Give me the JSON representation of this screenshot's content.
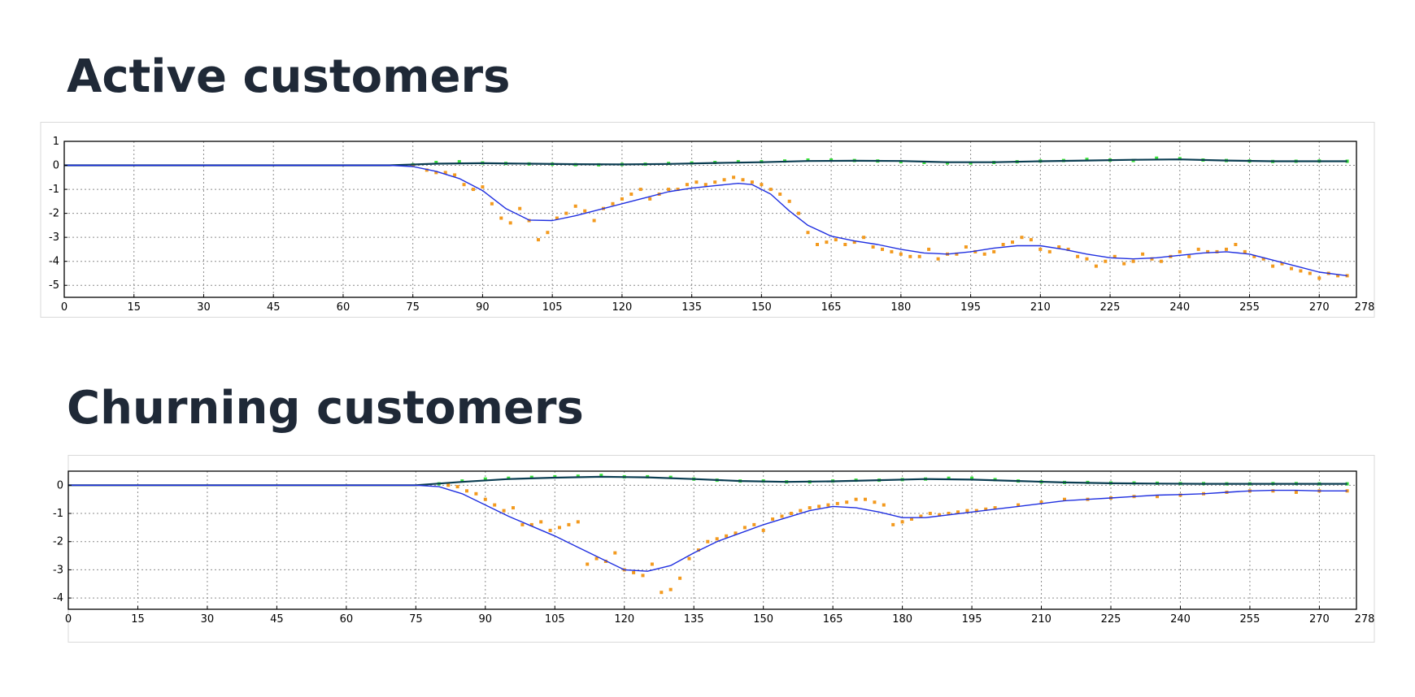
{
  "titles": {
    "active": "Active customers",
    "churn": "Churning customers"
  },
  "colors": {
    "smooth_line": "#1f2fe0",
    "orange_points": "#f39a1e",
    "green_points": "#39e03a",
    "grid": "#8c8c8c",
    "frame": "#000000",
    "title": "#1f2937"
  },
  "chart_data": [
    {
      "type": "scatter",
      "title": "Active customers",
      "xlim": [
        0,
        278
      ],
      "ylim": [
        -5.5,
        1
      ],
      "xticks": [
        0,
        15,
        30,
        45,
        60,
        75,
        90,
        105,
        120,
        135,
        150,
        165,
        180,
        195,
        210,
        225,
        240,
        255,
        270,
        278
      ],
      "yticks": [
        1,
        0,
        -1,
        -2,
        -3,
        -4,
        -5
      ],
      "grid": true,
      "series": [
        {
          "kind": "scatter",
          "color": "orange",
          "x": [
            75,
            78,
            80,
            82,
            84,
            86,
            88,
            90,
            92,
            94,
            96,
            98,
            100,
            102,
            104,
            106,
            108,
            110,
            112,
            114,
            116,
            118,
            120,
            122,
            124,
            126,
            128,
            130,
            132,
            134,
            136,
            138,
            140,
            142,
            144,
            146,
            148,
            150,
            152,
            154,
            156,
            158,
            160,
            162,
            164,
            166,
            168,
            170,
            172,
            174,
            176,
            178,
            180,
            182,
            184,
            186,
            188,
            190,
            192,
            194,
            196,
            198,
            200,
            202,
            204,
            206,
            208,
            210,
            212,
            214,
            216,
            218,
            220,
            222,
            224,
            226,
            228,
            230,
            232,
            234,
            236,
            238,
            240,
            242,
            244,
            246,
            248,
            250,
            252,
            254,
            256,
            258,
            260,
            262,
            264,
            266,
            268,
            270,
            272,
            274,
            276
          ],
          "y": [
            0,
            -0.2,
            -0.3,
            -0.3,
            -0.4,
            -0.8,
            -1.0,
            -0.9,
            -1.6,
            -2.2,
            -2.4,
            -1.8,
            -2.3,
            -3.1,
            -2.8,
            -2.2,
            -2.0,
            -1.7,
            -1.9,
            -2.3,
            -1.8,
            -1.6,
            -1.4,
            -1.2,
            -1.0,
            -1.4,
            -1.2,
            -1.0,
            -1.0,
            -0.8,
            -0.7,
            -0.8,
            -0.7,
            -0.6,
            -0.5,
            -0.6,
            -0.7,
            -0.8,
            -1.0,
            -1.2,
            -1.5,
            -2.0,
            -2.8,
            -3.3,
            -3.2,
            -3.1,
            -3.3,
            -3.2,
            -3.0,
            -3.4,
            -3.5,
            -3.6,
            -3.7,
            -3.8,
            -3.8,
            -3.5,
            -3.9,
            -3.7,
            -3.7,
            -3.4,
            -3.6,
            -3.7,
            -3.6,
            -3.3,
            -3.2,
            -3.0,
            -3.1,
            -3.5,
            -3.6,
            -3.4,
            -3.5,
            -3.8,
            -3.9,
            -4.2,
            -4.0,
            -3.8,
            -4.1,
            -4.0,
            -3.7,
            -3.9,
            -4.0,
            -3.8,
            -3.6,
            -3.8,
            -3.5,
            -3.6,
            -3.6,
            -3.5,
            -3.3,
            -3.6,
            -3.8,
            -3.9,
            -4.2,
            -4.1,
            -4.3,
            -4.4,
            -4.5,
            -4.7,
            -4.5,
            -4.6,
            -4.6
          ]
        },
        {
          "kind": "scatter",
          "color": "green",
          "x": [
            75,
            80,
            85,
            90,
            95,
            100,
            105,
            110,
            115,
            120,
            125,
            130,
            135,
            140,
            145,
            150,
            155,
            160,
            165,
            170,
            175,
            180,
            185,
            190,
            195,
            200,
            205,
            210,
            215,
            220,
            225,
            230,
            235,
            240,
            245,
            250,
            255,
            260,
            265,
            270,
            276
          ],
          "y": [
            0.02,
            0.12,
            0.15,
            0.1,
            0.08,
            0.06,
            0.05,
            0.03,
            0.02,
            0.04,
            0.05,
            0.08,
            0.1,
            0.12,
            0.15,
            0.15,
            0.18,
            0.22,
            0.22,
            0.2,
            0.18,
            0.15,
            0.12,
            0.1,
            0.1,
            0.12,
            0.15,
            0.18,
            0.2,
            0.25,
            0.22,
            0.2,
            0.3,
            0.28,
            0.22,
            0.2,
            0.18,
            0.16,
            0.17,
            0.18,
            0.17
          ]
        },
        {
          "kind": "line",
          "color": "blue",
          "x": [
            0,
            70,
            75,
            80,
            85,
            90,
            95,
            100,
            105,
            110,
            115,
            120,
            125,
            130,
            135,
            140,
            145,
            148,
            152,
            156,
            160,
            165,
            170,
            175,
            180,
            185,
            190,
            195,
            200,
            205,
            210,
            215,
            220,
            225,
            230,
            235,
            240,
            245,
            250,
            255,
            260,
            265,
            270,
            276
          ],
          "y": [
            0,
            0,
            -0.05,
            -0.25,
            -0.55,
            -1.05,
            -1.8,
            -2.28,
            -2.3,
            -2.1,
            -1.85,
            -1.6,
            -1.35,
            -1.1,
            -0.95,
            -0.85,
            -0.75,
            -0.8,
            -1.2,
            -1.9,
            -2.5,
            -2.95,
            -3.15,
            -3.3,
            -3.5,
            -3.65,
            -3.7,
            -3.6,
            -3.45,
            -3.35,
            -3.35,
            -3.5,
            -3.7,
            -3.85,
            -3.9,
            -3.85,
            -3.75,
            -3.65,
            -3.6,
            -3.7,
            -3.95,
            -4.2,
            -4.45,
            -4.6
          ]
        },
        {
          "kind": "line",
          "color": "dark",
          "x": [
            0,
            70,
            80,
            90,
            100,
            110,
            120,
            130,
            140,
            150,
            160,
            170,
            180,
            190,
            200,
            210,
            220,
            230,
            240,
            250,
            260,
            270,
            276
          ],
          "y": [
            0,
            0,
            0.07,
            0.09,
            0.07,
            0.05,
            0.04,
            0.06,
            0.1,
            0.13,
            0.18,
            0.19,
            0.18,
            0.13,
            0.13,
            0.17,
            0.2,
            0.23,
            0.25,
            0.2,
            0.17,
            0.17,
            0.17
          ]
        }
      ]
    },
    {
      "type": "scatter",
      "title": "Churning customers",
      "xlim": [
        0,
        278
      ],
      "ylim": [
        -4.4,
        0.5
      ],
      "xticks": [
        0,
        15,
        30,
        45,
        60,
        75,
        90,
        105,
        120,
        135,
        150,
        165,
        180,
        195,
        210,
        225,
        240,
        255,
        270,
        278
      ],
      "yticks": [
        0,
        -1,
        -2,
        -3,
        -4
      ],
      "grid": true,
      "series": [
        {
          "kind": "scatter",
          "color": "orange",
          "x": [
            82,
            84,
            86,
            88,
            90,
            92,
            94,
            96,
            98,
            100,
            102,
            104,
            106,
            108,
            110,
            112,
            114,
            116,
            118,
            120,
            122,
            124,
            126,
            128,
            130,
            132,
            134,
            136,
            138,
            140,
            142,
            144,
            146,
            148,
            150,
            152,
            154,
            156,
            158,
            160,
            162,
            164,
            166,
            168,
            170,
            172,
            174,
            176,
            178,
            180,
            182,
            184,
            186,
            188,
            190,
            192,
            194,
            196,
            198,
            200,
            205,
            210,
            215,
            220,
            225,
            230,
            235,
            240,
            245,
            250,
            255,
            260,
            265,
            270,
            276
          ],
          "y": [
            0,
            -0.05,
            -0.2,
            -0.3,
            -0.5,
            -0.7,
            -0.9,
            -0.8,
            -1.4,
            -1.4,
            -1.3,
            -1.6,
            -1.5,
            -1.4,
            -1.3,
            -2.8,
            -2.6,
            -2.7,
            -2.4,
            -3.0,
            -3.1,
            -3.2,
            -2.8,
            -3.8,
            -3.7,
            -3.3,
            -2.6,
            -2.3,
            -2.0,
            -1.9,
            -1.8,
            -1.7,
            -1.5,
            -1.4,
            -1.6,
            -1.2,
            -1.1,
            -1.0,
            -0.9,
            -0.8,
            -0.75,
            -0.7,
            -0.65,
            -0.6,
            -0.5,
            -0.5,
            -0.6,
            -0.7,
            -1.4,
            -1.3,
            -1.2,
            -1.1,
            -1.0,
            -1.05,
            -1.0,
            -0.95,
            -0.9,
            -0.9,
            -0.85,
            -0.8,
            -0.7,
            -0.6,
            -0.5,
            -0.5,
            -0.45,
            -0.4,
            -0.4,
            -0.35,
            -0.3,
            -0.25,
            -0.2,
            -0.2,
            -0.25,
            -0.2,
            -0.2
          ]
        },
        {
          "kind": "scatter",
          "color": "green",
          "x": [
            80,
            85,
            90,
            95,
            100,
            105,
            110,
            115,
            120,
            125,
            130,
            135,
            140,
            145,
            150,
            155,
            160,
            165,
            170,
            175,
            180,
            185,
            190,
            195,
            200,
            205,
            210,
            215,
            220,
            225,
            230,
            235,
            240,
            245,
            250,
            255,
            260,
            265,
            270,
            276
          ],
          "y": [
            0.05,
            0.15,
            0.22,
            0.25,
            0.28,
            0.3,
            0.32,
            0.35,
            0.3,
            0.3,
            0.28,
            0.22,
            0.18,
            0.15,
            0.15,
            0.12,
            0.12,
            0.15,
            0.18,
            0.18,
            0.2,
            0.22,
            0.25,
            0.25,
            0.2,
            0.15,
            0.12,
            0.1,
            0.1,
            0.08,
            0.08,
            0.07,
            0.06,
            0.06,
            0.05,
            0.05,
            0.06,
            0.06,
            0.05,
            0.05
          ]
        },
        {
          "kind": "line",
          "color": "blue",
          "x": [
            0,
            75,
            80,
            85,
            90,
            95,
            100,
            105,
            110,
            115,
            120,
            125,
            130,
            135,
            140,
            145,
            150,
            155,
            160,
            165,
            170,
            175,
            180,
            185,
            190,
            195,
            200,
            205,
            210,
            215,
            220,
            225,
            230,
            235,
            240,
            245,
            250,
            255,
            260,
            265,
            270,
            276
          ],
          "y": [
            0,
            0,
            -0.05,
            -0.3,
            -0.7,
            -1.1,
            -1.45,
            -1.8,
            -2.2,
            -2.6,
            -3.0,
            -3.05,
            -2.85,
            -2.4,
            -2.0,
            -1.7,
            -1.4,
            -1.15,
            -0.9,
            -0.75,
            -0.8,
            -0.95,
            -1.15,
            -1.15,
            -1.05,
            -0.95,
            -0.85,
            -0.75,
            -0.65,
            -0.55,
            -0.5,
            -0.45,
            -0.4,
            -0.35,
            -0.33,
            -0.3,
            -0.25,
            -0.2,
            -0.18,
            -0.18,
            -0.2,
            -0.2
          ]
        },
        {
          "kind": "line",
          "color": "dark",
          "x": [
            0,
            75,
            85,
            95,
            105,
            115,
            125,
            135,
            145,
            155,
            165,
            175,
            185,
            195,
            205,
            215,
            225,
            235,
            245,
            255,
            265,
            276
          ],
          "y": [
            0,
            0,
            0.12,
            0.22,
            0.27,
            0.3,
            0.28,
            0.22,
            0.15,
            0.12,
            0.14,
            0.18,
            0.22,
            0.2,
            0.15,
            0.1,
            0.07,
            0.06,
            0.05,
            0.05,
            0.05,
            0.05
          ]
        }
      ]
    }
  ]
}
